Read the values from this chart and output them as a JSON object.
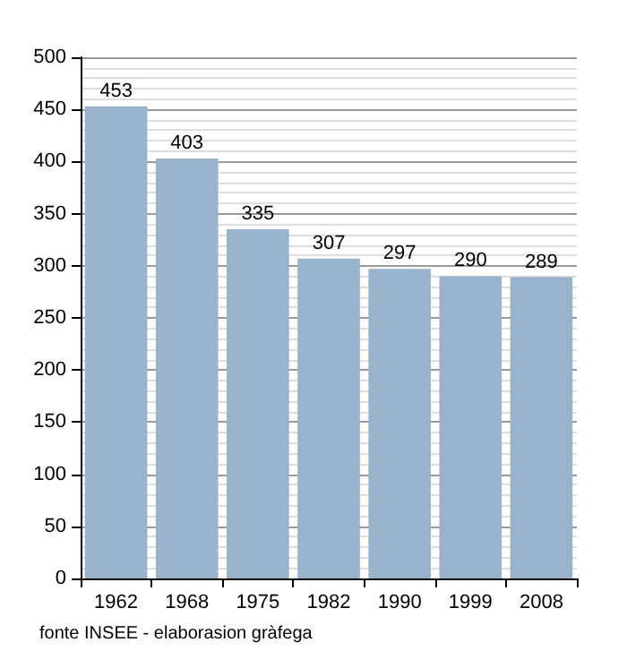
{
  "chart_data": {
    "type": "bar",
    "categories": [
      "1962",
      "1968",
      "1975",
      "1982",
      "1990",
      "1999",
      "2008"
    ],
    "values": [
      453,
      403,
      335,
      307,
      297,
      290,
      289
    ],
    "color": "#99b3cc",
    "data_labels": true,
    "ylim": [
      0,
      500
    ],
    "yticks": [
      0,
      50,
      100,
      150,
      200,
      250,
      300,
      350,
      400,
      450,
      500
    ],
    "grid": "y",
    "annotations": [
      "fonte INSEE - elaborasion gràfega"
    ]
  }
}
